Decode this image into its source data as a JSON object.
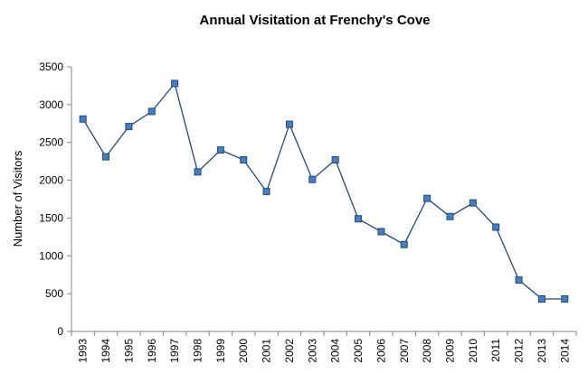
{
  "chart_data": {
    "type": "line",
    "title": "Annual Visitation at Frenchy's Cove",
    "xlabel": "",
    "ylabel": "Number of Visitors",
    "ylim": [
      0,
      3500
    ],
    "yticks": [
      0,
      500,
      1000,
      1500,
      2000,
      2500,
      3000,
      3500
    ],
    "grid": false,
    "legend": "none",
    "categories": [
      "1993",
      "1994",
      "1995",
      "1996",
      "1997",
      "1998",
      "1999",
      "2000",
      "2001",
      "2002",
      "2003",
      "2004",
      "2005",
      "2006",
      "2007",
      "2008",
      "2009",
      "2010",
      "2011",
      "2012",
      "2013",
      "2014"
    ],
    "series": [
      {
        "values": [
          2810,
          2310,
          2710,
          2910,
          3280,
          2110,
          2400,
          2270,
          1850,
          2740,
          2010,
          2270,
          1490,
          1320,
          1150,
          1760,
          1520,
          1700,
          1380,
          680,
          430,
          430
        ],
        "color": "#1f497d",
        "marker_fill": "#4a7ebb"
      }
    ]
  }
}
